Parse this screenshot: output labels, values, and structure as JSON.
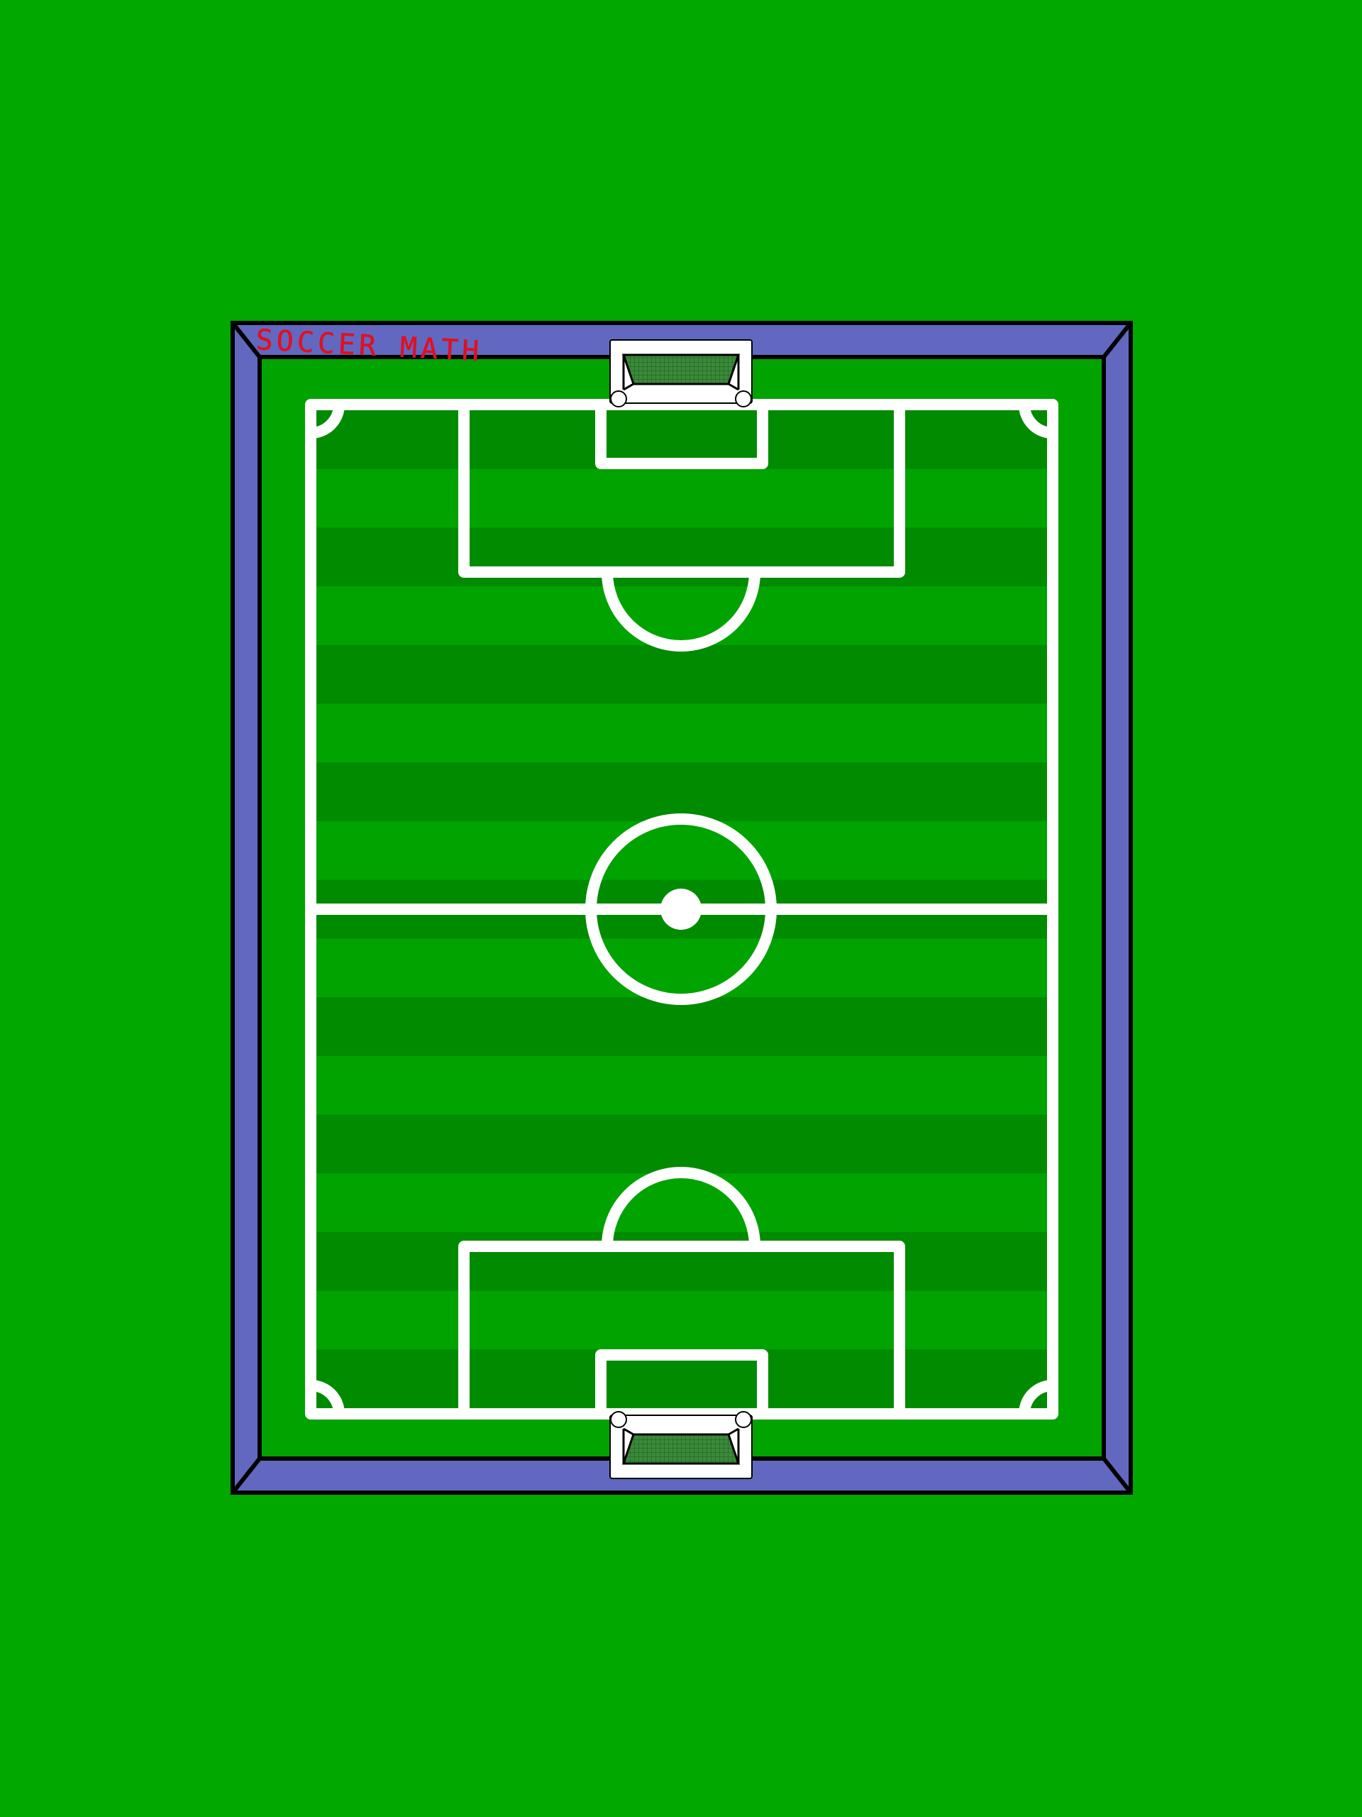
{
  "game": {
    "title": "SOCCER MATH"
  },
  "colors": {
    "background": "#00a800",
    "border_frame": "#6268c0",
    "outline": "#000000",
    "grass_light": "#00a300",
    "grass_dark": "#008b00",
    "field_lines": "#ffffff",
    "title_text": "#e01020",
    "goal_net": "#50a050"
  },
  "pitch": {
    "stripe_count": 17,
    "goals": [
      "top-goal",
      "bottom-goal"
    ]
  }
}
